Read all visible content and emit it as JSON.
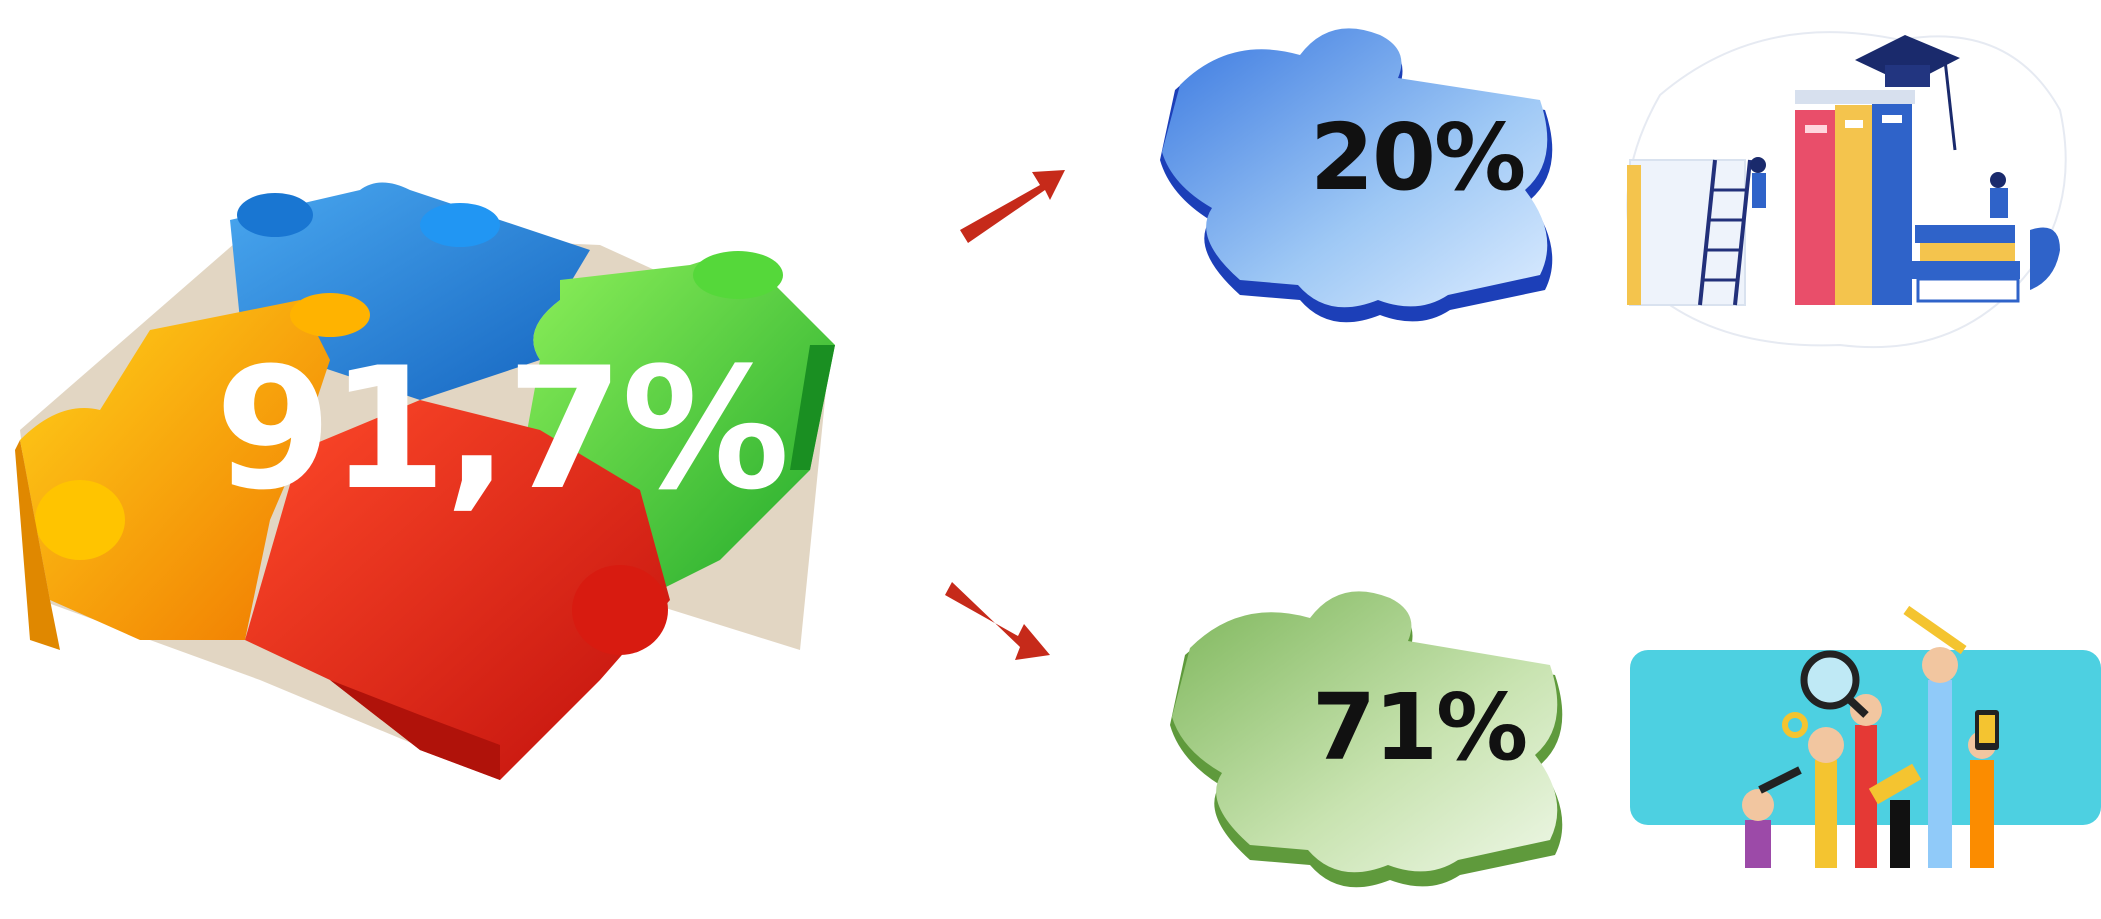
{
  "main_puzzle": {
    "percentage": "91,7%",
    "piece_colors": [
      "#1e88e5",
      "#35c23a",
      "#f5a300",
      "#e52018"
    ],
    "icon": "puzzle-cluster-icon"
  },
  "arrows": {
    "color": "#c62a1a",
    "top_icon": "arrow-up-right-icon",
    "bottom_icon": "arrow-down-right-icon"
  },
  "branches": [
    {
      "percentage": "20%",
      "piece_color": "#2f6fd6",
      "piece_icon": "puzzle-piece-blue-icon",
      "illustration_icon": "books-education-illustration"
    },
    {
      "percentage": "71%",
      "piece_color": "#8cc063",
      "piece_icon": "puzzle-piece-green-icon",
      "illustration_icon": "raised-hands-tools-illustration"
    }
  ]
}
